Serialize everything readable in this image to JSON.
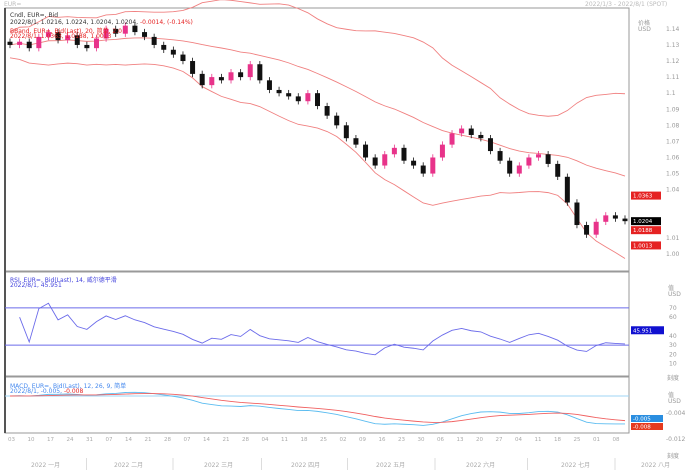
{
  "window": {
    "title": "EUR=",
    "range": "2022/1/3 - 2022/8/1 (SPOT)"
  },
  "price_panel": {
    "legend1": "Cndl, EUR=, Bid",
    "legend2_values": "2022/8/1, 1.0216, 1.0224, 1.0204, 1.0204,",
    "legend2_change": "-0.0014, (-0.14%)",
    "legend3": "BBand, EUR=, Bid(Last), 20, 简单, 2.0",
    "legend4": "2022/8/1, 1.0363, 1.0188, 1.0013",
    "axis_title": "价格",
    "axis_unit": "USD",
    "axis_ticks": [
      "1.14",
      "1.13",
      "1.12",
      "1.11",
      "1.1",
      "1.09",
      "1.08",
      "1.07",
      "1.06",
      "1.05",
      "1.04",
      "1.01",
      "1.00"
    ],
    "last_label": "1.0204",
    "bb_upper_label": "1.0363",
    "bb_mid_label": "1.0188",
    "bb_lower_label": "1.0013"
  },
  "rsi_panel": {
    "legend1": "RSI, EUR=, Bid(Last), 14, 威尔德平滑",
    "legend2": "2022/8/1, 45.951",
    "axis_title": "值",
    "axis_unit": "USD",
    "axis_ticks": [
      "70",
      "60",
      "40",
      "30",
      "20",
      "10"
    ],
    "last_label": "45.951",
    "footer": "刻度"
  },
  "macd_panel": {
    "legend1": "MACD, EUR=, Bid(Last), 12, 26, 9, 简单",
    "legend2_a": "2022/8/1, -0.005,",
    "legend2_b": "-0.008",
    "axis_title": "值",
    "axis_unit": "USD",
    "axis_ticks": [
      "-0.004",
      "-0.012"
    ],
    "macd_label": "-0.005",
    "signal_label": "-0.008",
    "footer": "刻度"
  },
  "x_axis": {
    "day_ticks": [
      "03",
      "10",
      "17",
      "24",
      "31",
      "07",
      "14",
      "21",
      "28",
      "07",
      "14",
      "21",
      "28",
      "04",
      "11",
      "18",
      "25",
      "02",
      "09",
      "16",
      "23",
      "30",
      "06",
      "13",
      "20",
      "27",
      "04",
      "11",
      "18",
      "25",
      "01",
      "08"
    ],
    "months": [
      "2022 一月",
      "2022 二月",
      "2022 三月",
      "2022 四月",
      "2022 五月",
      "2022 六月",
      "2022 七月",
      "2022 八月"
    ]
  },
  "colors": {
    "up": "#e8338a",
    "down": "#111111",
    "band": "#f08080",
    "rsi": "#6b6bea",
    "macd": "#5bbcf0",
    "signal": "#f06060",
    "last": "#000000",
    "red": "#e52222"
  },
  "chart_data": {
    "type": "candlestick",
    "close": [
      1.13,
      1.132,
      1.128,
      1.135,
      1.138,
      1.133,
      1.136,
      1.13,
      1.128,
      1.134,
      1.14,
      1.137,
      1.142,
      1.138,
      1.135,
      1.13,
      1.127,
      1.124,
      1.12,
      1.112,
      1.105,
      1.11,
      1.108,
      1.113,
      1.11,
      1.118,
      1.108,
      1.102,
      1.1,
      1.098,
      1.095,
      1.1,
      1.092,
      1.086,
      1.08,
      1.072,
      1.068,
      1.06,
      1.055,
      1.062,
      1.066,
      1.058,
      1.055,
      1.05,
      1.06,
      1.068,
      1.075,
      1.078,
      1.074,
      1.072,
      1.064,
      1.058,
      1.05,
      1.055,
      1.06,
      1.062,
      1.056,
      1.048,
      1.032,
      1.018,
      1.012,
      1.02,
      1.024,
      1.022,
      1.0204
    ],
    "ylim": [
      0.995,
      1.148
    ],
    "rsi_levels": [
      70,
      30
    ],
    "bbands": {
      "period": 20,
      "k": 2
    },
    "rsi_period": 14,
    "macd": {
      "fast": 12,
      "slow": 26,
      "signal": 9
    }
  }
}
